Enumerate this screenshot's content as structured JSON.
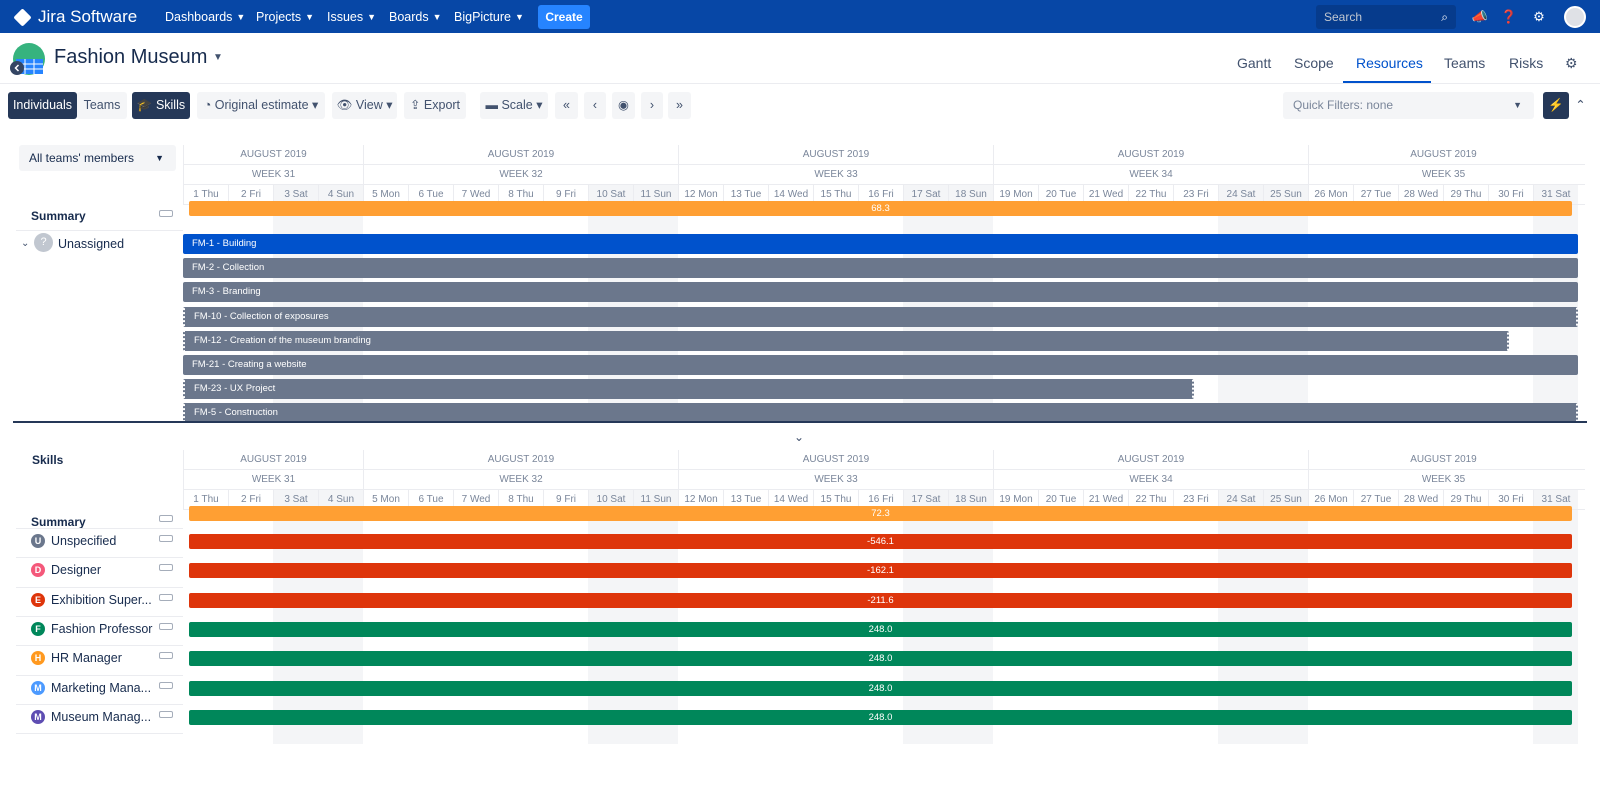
{
  "topnav": {
    "app_name": "Jira Software",
    "menus": [
      "Dashboards",
      "Projects",
      "Issues",
      "Boards",
      "BigPicture"
    ],
    "create_label": "Create",
    "search_placeholder": "Search"
  },
  "project": {
    "title": "Fashion Museum",
    "tabs": [
      "Gantt",
      "Scope",
      "Resources",
      "Teams",
      "Risks"
    ],
    "active_tab": "Resources"
  },
  "toolbar": {
    "individuals": "Individuals",
    "teams": "Teams",
    "skills": "Skills",
    "original_estimate": "Original estimate",
    "view": "View",
    "export": "Export",
    "scale": "Scale",
    "quick_filters": "Quick Filters: none"
  },
  "timeline": {
    "months": [
      "AUGUST 2019",
      "AUGUST 2019",
      "AUGUST 2019",
      "AUGUST 2019",
      "AUGUST 2019"
    ],
    "weeks": [
      "WEEK 31",
      "WEEK 32",
      "WEEK 33",
      "WEEK 34",
      "WEEK 35"
    ],
    "days": [
      "1 Thu",
      "2 Fri",
      "3 Sat",
      "4 Sun",
      "5 Mon",
      "6 Tue",
      "7 Wed",
      "8 Thu",
      "9 Fri",
      "10 Sat",
      "11 Sun",
      "12 Mon",
      "13 Tue",
      "14 Wed",
      "15 Thu",
      "16 Fri",
      "17 Sat",
      "18 Sun",
      "19 Mon",
      "20 Tue",
      "21 Wed",
      "22 Thu",
      "23 Fri",
      "24 Sat",
      "25 Sun",
      "26 Mon",
      "27 Tue",
      "28 Wed",
      "29 Thu",
      "30 Fri",
      "31 Sat"
    ]
  },
  "resources": {
    "filter": "All teams' members",
    "summary_label": "Summary",
    "summary_value": "68.3",
    "assignee": "Unassigned",
    "issues": [
      {
        "label": "FM-1 - Building",
        "color": "#0052cc",
        "end_day": 31,
        "dashed": false
      },
      {
        "label": "FM-2 - Collection",
        "color": "#6b778c",
        "end_day": 31,
        "dashed": false
      },
      {
        "label": "FM-3 - Branding",
        "color": "#6b778c",
        "end_day": 31,
        "dashed": false
      },
      {
        "label": "FM-10 - Collection of exposures",
        "color": "#6b778c",
        "end_day": 31,
        "dashed": true
      },
      {
        "label": "FM-12 - Creation of the museum branding",
        "color": "#6b778c",
        "end_day": 30,
        "dashed": true
      },
      {
        "label": "FM-21 - Creating a website",
        "color": "#6b778c",
        "end_day": 31,
        "dashed": false
      },
      {
        "label": "FM-23 - UX Project",
        "color": "#6b778c",
        "end_day": 23,
        "dashed": true
      },
      {
        "label": "FM-5 - Construction",
        "color": "#6b778c",
        "end_day": 31,
        "dashed": true
      }
    ]
  },
  "skills": {
    "title": "Skills",
    "summary_label": "Summary",
    "summary_value": "72.3",
    "rows": [
      {
        "initial": "U",
        "name": "Unspecified",
        "badge": "#6b778c",
        "value": "-546.1",
        "bar": "#de350b"
      },
      {
        "initial": "D",
        "name": "Designer",
        "badge": "#f4587a",
        "value": "-162.1",
        "bar": "#de350b"
      },
      {
        "initial": "E",
        "name": "Exhibition Super...",
        "badge": "#de350b",
        "value": "-211.6",
        "bar": "#de350b"
      },
      {
        "initial": "F",
        "name": "Fashion Professor",
        "badge": "#00875a",
        "value": "248.0",
        "bar": "#00875a"
      },
      {
        "initial": "H",
        "name": "HR Manager",
        "badge": "#ff991f",
        "value": "248.0",
        "bar": "#00875a"
      },
      {
        "initial": "M",
        "name": "Marketing Mana...",
        "badge": "#4c9aff",
        "value": "248.0",
        "bar": "#00875a"
      },
      {
        "initial": "M",
        "name": "Museum Manag...",
        "badge": "#5e4db2",
        "value": "248.0",
        "bar": "#00875a"
      }
    ]
  },
  "colors": {
    "summary_bar": "#ff9f33",
    "nav_bg": "#0747a6",
    "accent": "#0052cc"
  }
}
